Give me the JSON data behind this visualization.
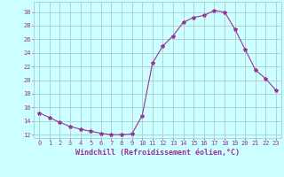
{
  "x": [
    0,
    1,
    2,
    3,
    4,
    5,
    6,
    7,
    8,
    9,
    10,
    11,
    12,
    13,
    14,
    15,
    16,
    17,
    18,
    19,
    20,
    21,
    22,
    23
  ],
  "y": [
    15.2,
    14.5,
    13.8,
    13.2,
    12.8,
    12.5,
    12.2,
    12.0,
    12.0,
    12.1,
    14.8,
    22.5,
    25.0,
    26.5,
    28.5,
    29.2,
    29.5,
    30.2,
    30.0,
    27.5,
    24.5,
    21.5,
    20.2,
    18.5
  ],
  "line_color": "#993399",
  "marker": "*",
  "marker_size": 3,
  "bg_color": "#ccffff",
  "grid_color": "#aacccc",
  "ylabel_ticks": [
    12,
    14,
    16,
    18,
    20,
    22,
    24,
    26,
    28,
    30
  ],
  "xlabel": "Windchill (Refroidissement éolien,°C)",
  "xlabel_color": "#993399",
  "tick_color": "#993399",
  "ylim": [
    11.5,
    31.5
  ],
  "xlim": [
    -0.5,
    23.5
  ],
  "tick_fontsize": 5.0,
  "xlabel_fontsize": 6.0,
  "linewidth": 0.8
}
